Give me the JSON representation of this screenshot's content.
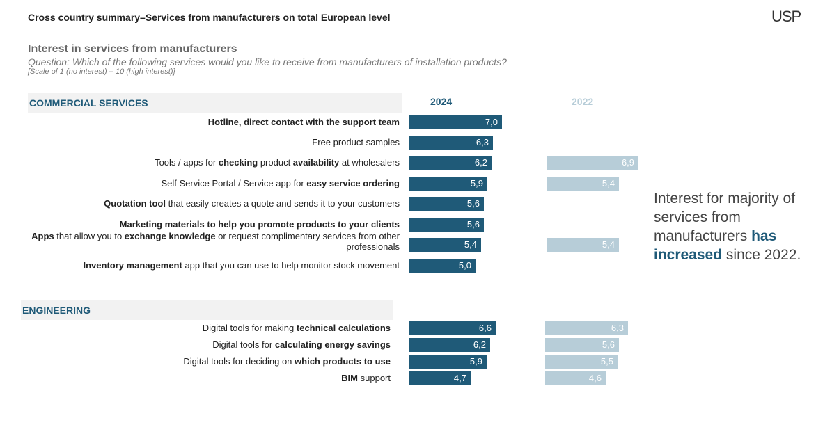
{
  "header": {
    "title": "Cross country summary–Services from manufacturers on total European level",
    "logo": "USP"
  },
  "intro": {
    "subtitle": "Interest in services from manufacturers",
    "question": "Question: Which of the following services would you like to receive from manufacturers of installation products?",
    "scale": "[Scale of 1 (no interest) – 10 (high interest)]"
  },
  "callout": [
    {
      "text": "Interest for majority of services from manufacturers ",
      "bold": false
    },
    {
      "text": "has increased",
      "bold": true
    },
    {
      "text": " since 2022.",
      "bold": false
    }
  ],
  "colors": {
    "series_2024": "#1f5a78",
    "series_2022": "#b7cdd8"
  },
  "chart_data": {
    "type": "bar",
    "orientation": "horizontal",
    "xlim": [
      1,
      10
    ],
    "series": [
      {
        "name": "2024",
        "color": "#1f5a78"
      },
      {
        "name": "2022",
        "color": "#b7cdd8"
      }
    ],
    "groups": [
      {
        "name": "COMMERCIAL SERVICES",
        "rows": [
          {
            "label": [
              {
                "t": "Hotline, direct contact with the support team",
                "b": true
              }
            ],
            "v2024": 7.0,
            "v2022": null,
            "d2024": "7,0",
            "d2022": ""
          },
          {
            "label": [
              {
                "t": "Free product samples",
                "b": false
              }
            ],
            "v2024": 6.3,
            "v2022": null,
            "d2024": "6,3",
            "d2022": ""
          },
          {
            "label": [
              {
                "t": "Tools / apps for ",
                "b": false
              },
              {
                "t": "checking",
                "b": true
              },
              {
                "t": " product ",
                "b": false
              },
              {
                "t": "availability",
                "b": true
              },
              {
                "t": " at wholesalers",
                "b": false
              }
            ],
            "v2024": 6.2,
            "v2022": 6.9,
            "d2024": "6,2",
            "d2022": "6,9"
          },
          {
            "label": [
              {
                "t": "Self Service Portal / Service app for ",
                "b": false
              },
              {
                "t": "easy service ordering",
                "b": true
              }
            ],
            "v2024": 5.9,
            "v2022": 5.4,
            "d2024": "5,9",
            "d2022": "5,4"
          },
          {
            "label": [
              {
                "t": "Quotation tool",
                "b": true
              },
              {
                "t": " that easily creates a quote and sends it to your customers",
                "b": false
              }
            ],
            "v2024": 5.6,
            "v2022": null,
            "d2024": "5,6",
            "d2022": ""
          },
          {
            "label": [
              {
                "t": "Marketing materials to help you promote products to your clients",
                "b": true
              }
            ],
            "v2024": 5.6,
            "v2022": null,
            "d2024": "5,6",
            "d2022": ""
          },
          {
            "label": [
              {
                "t": "Apps",
                "b": true
              },
              {
                "t": " that allow you to ",
                "b": false
              },
              {
                "t": "exchange knowledge",
                "b": true
              },
              {
                "t": " or request complimentary services from other professionals",
                "b": false
              }
            ],
            "v2024": 5.4,
            "v2022": 5.4,
            "d2024": "5,4",
            "d2022": "5,4"
          },
          {
            "label": [
              {
                "t": "Inventory management",
                "b": true
              },
              {
                "t": " app that you can use to help monitor stock movement",
                "b": false
              }
            ],
            "v2024": 5.0,
            "v2022": null,
            "d2024": "5,0",
            "d2022": ""
          }
        ]
      },
      {
        "name": "ENGINEERING",
        "rows": [
          {
            "label": [
              {
                "t": "Digital tools for making ",
                "b": false
              },
              {
                "t": "technical calculations",
                "b": true
              }
            ],
            "v2024": 6.6,
            "v2022": 6.3,
            "d2024": "6,6",
            "d2022": "6,3"
          },
          {
            "label": [
              {
                "t": "Digital tools for ",
                "b": false
              },
              {
                "t": "calculating energy savings",
                "b": true
              }
            ],
            "v2024": 6.2,
            "v2022": 5.6,
            "d2024": "6,2",
            "d2022": "5,6"
          },
          {
            "label": [
              {
                "t": "Digital tools for deciding on ",
                "b": false
              },
              {
                "t": "which products to use",
                "b": true
              }
            ],
            "v2024": 5.9,
            "v2022": 5.5,
            "d2024": "5,9",
            "d2022": "5,5"
          },
          {
            "label": [
              {
                "t": "BIM",
                "b": true
              },
              {
                "t": " support",
                "b": false
              }
            ],
            "v2024": 4.7,
            "v2022": 4.6,
            "d2024": "4,7",
            "d2022": "4,6"
          }
        ]
      }
    ]
  }
}
